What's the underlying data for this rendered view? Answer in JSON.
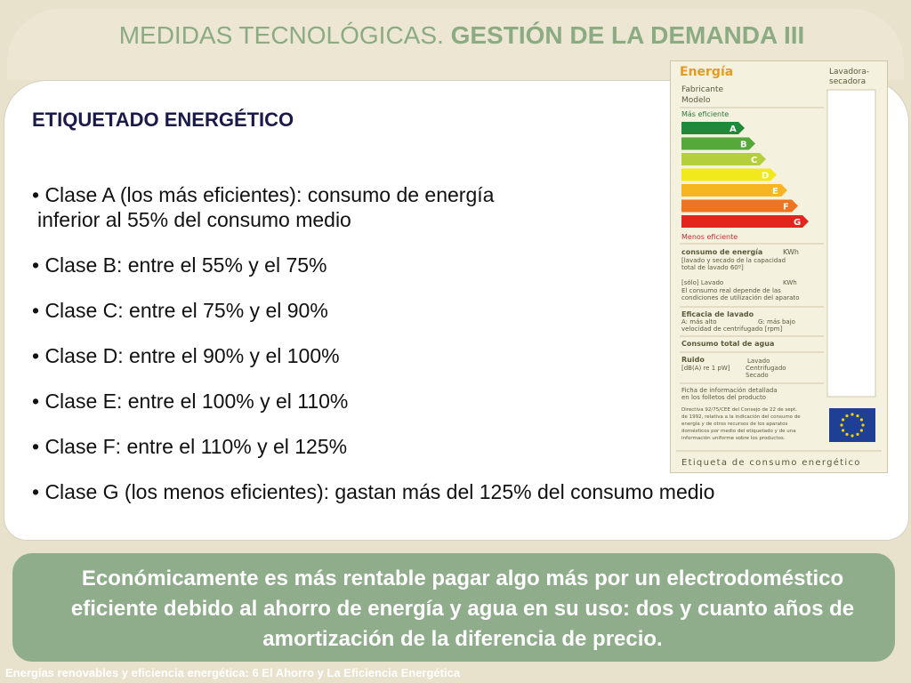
{
  "title": {
    "light": "MEDIDAS TECNOLÓGICAS.",
    "bold": "GESTIÓN DE LA DEMANDA III"
  },
  "heading": "ETIQUETADO ENERGÉTICO",
  "bullets": [
    {
      "line1": "• Clase A (los más eficientes): consumo de energía",
      "line2": "inferior al 55% del consumo medio"
    },
    {
      "line1": "• Clase B: entre el 55% y el 75%"
    },
    {
      "line1": "• Clase C: entre el 75% y el 90%"
    },
    {
      "line1": "• Clase D: entre el 90% y el 100%"
    },
    {
      "line1": "• Clase E: entre el 100% y el 110%"
    },
    {
      "line1": "• Clase F: entre el 110% y el 125%"
    },
    {
      "line1": "• Clase G (los menos eficientes): gastan más del 125% del consumo medio"
    }
  ],
  "label": {
    "energia": "Energía",
    "appliance_1": "Lavadora-",
    "appliance_2": "secadora",
    "fabricante": "Fabricante",
    "modelo": "Modelo",
    "mas_eficiente": "Más eficiente",
    "menos_eficiente": "Menos eficiente",
    "classes": [
      "A",
      "B",
      "C",
      "D",
      "E",
      "F",
      "G"
    ],
    "class_colors": [
      "#1e8a3a",
      "#56a83a",
      "#b4cf3c",
      "#f2e91c",
      "#f6b622",
      "#ef7422",
      "#e2261f"
    ],
    "consumo_title": "consumo de energía",
    "kwh": "KWh",
    "consumo_1": "[lavado y secado de la capacidad",
    "consumo_2": "total de lavado 60º]",
    "solo_lavado": "[sólo] Lavado",
    "kwh2": "KWh",
    "real_1": "El consumo real depende de las",
    "real_2": "condiciones de utilización del aparato",
    "eficacia": "Eficacia de lavado",
    "a_mas_alto": "A: más alto",
    "g_mas_bajo": "G: más bajo",
    "velocidad": "velocidad de centrifugado [rpm]",
    "consumo_agua": "Consumo total de agua",
    "ruido": "Ruido",
    "db": "[dB(A) re 1 pW]",
    "lavado": "Lavado",
    "centrifugado": "Centrifugado",
    "secado": "Secado",
    "ficha_1": "Ficha de información detallada",
    "ficha_2": "en los folletos del producto",
    "directiva_1": "Directiva 92/75/CEE del Consejo de 22 de sept.",
    "directiva_2": "de 1992, relativa a la indicación del consumo de",
    "directiva_3": "energía y de otros recursos de los aparatos",
    "directiva_4": "domésticos por medio del etiquetado y de una",
    "directiva_5": "información uniforme sobre los productos.",
    "footer_label": "Etiqueta de consumo energético"
  },
  "bottom_text": "Económicamente es más rentable pagar algo más por un electrodoméstico eficiente debido al ahorro de energía y agua en su uso:  dos y cuanto años de amortización de  la diferencia de precio.",
  "footer": "Energías renovables y eficiencia energética: 6 El Ahorro y La Eficiencia Energética"
}
